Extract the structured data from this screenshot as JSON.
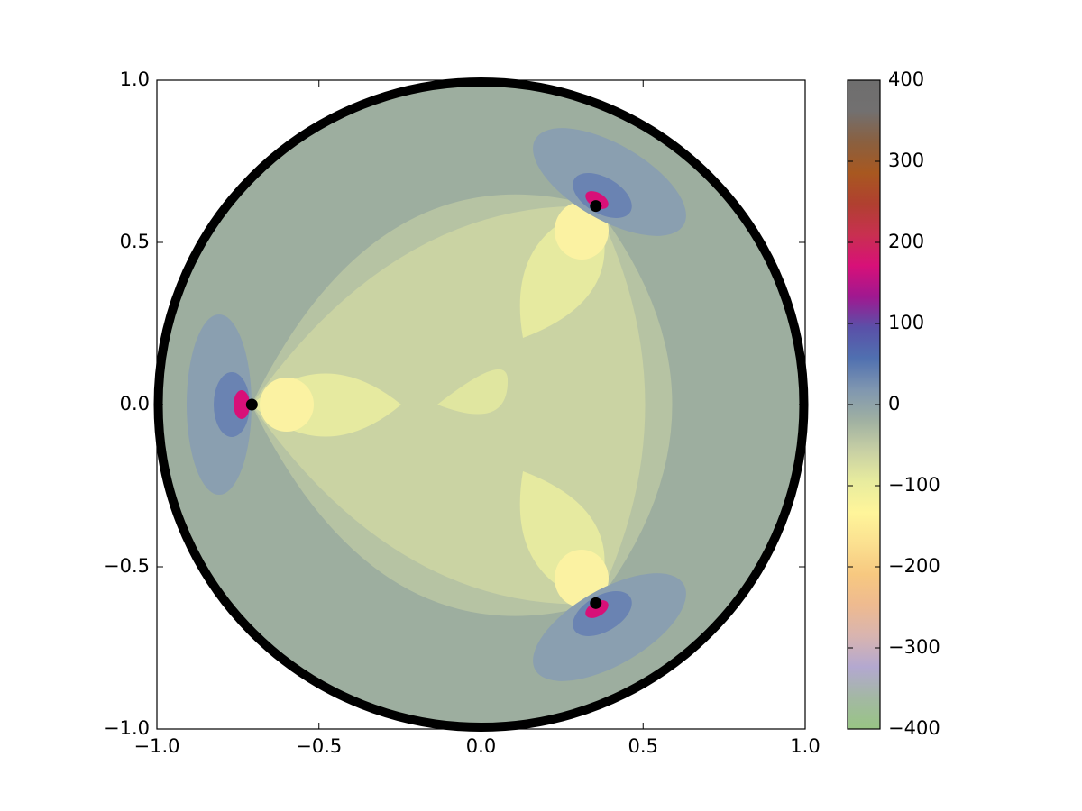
{
  "chart_data": {
    "type": "scatter",
    "x": [
      -0.707,
      0.354,
      0.354
    ],
    "series": [
      {
        "color": "#000000",
        "values": [
          0,
          0.612,
          -0.612
        ]
      }
    ],
    "xlim": [
      -1,
      1
    ],
    "ylim": [
      -1,
      1
    ],
    "xticks": [
      {
        "value": -1,
        "label": "−1.0"
      },
      {
        "value": -0.5,
        "label": "−0.5"
      },
      {
        "value": 0,
        "label": "0.0"
      },
      {
        "value": 0.5,
        "label": "0.5"
      },
      {
        "value": 1,
        "label": "1.0"
      }
    ],
    "yticks": [
      {
        "value": -1,
        "label": "−1.0"
      },
      {
        "value": -0.5,
        "label": "−0.5"
      },
      {
        "value": 0,
        "label": "0.0"
      },
      {
        "value": 0.5,
        "label": "0.5"
      },
      {
        "value": 1,
        "label": "1.0"
      }
    ],
    "colorbar": {
      "lim": [
        -400,
        400
      ],
      "ticks": [
        {
          "value": -400,
          "label": "−400"
        },
        {
          "value": -300,
          "label": "−300"
        },
        {
          "value": -200,
          "label": "−200"
        },
        {
          "value": -100,
          "label": "−100"
        },
        0,
        100,
        200,
        300,
        400
      ],
      "colors": [
        "#98c584",
        "#a3b8a3",
        "#b3a8d0",
        "#d8b4b0",
        "#eeba90",
        "#f7c880",
        "#fbe090",
        "#fff59a",
        "#e8ec9e",
        "#c8d0a4",
        "#9fb0a2",
        "#7f96b0",
        "#5070b0",
        "#5a50a8",
        "#a01890",
        "#d81078",
        "#c83050",
        "#b04030",
        "#a85820",
        "#8a6040",
        "#727070",
        "#6e6e6e"
      ]
    }
  }
}
